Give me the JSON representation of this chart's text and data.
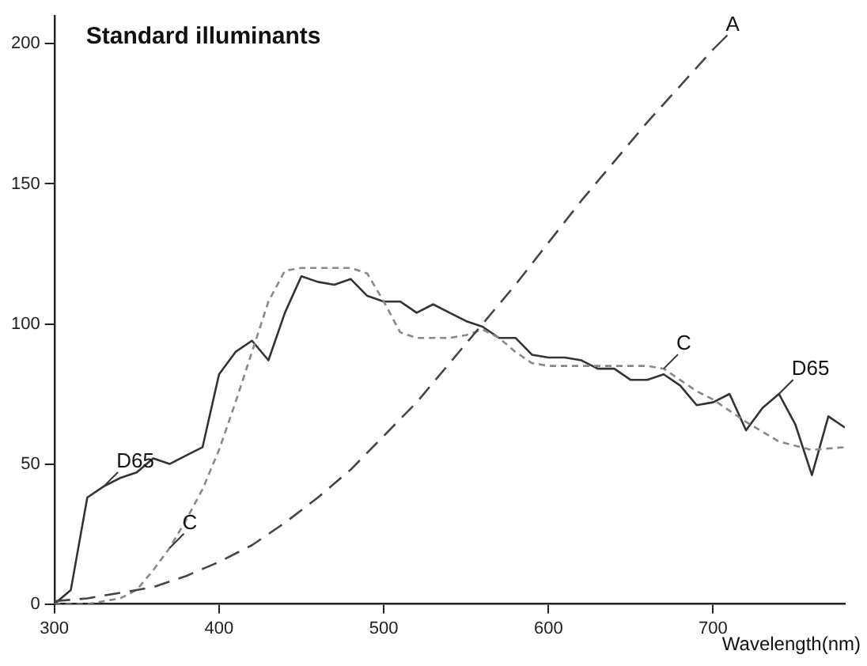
{
  "chart_data": {
    "type": "line",
    "title": "Standard illuminants",
    "xlabel": "Wavelength(nm)",
    "xlim": [
      300,
      780
    ],
    "xticks": [
      300,
      400,
      500,
      600,
      700
    ],
    "ylim": [
      0,
      210
    ],
    "yticks": [
      0,
      50,
      100,
      150,
      200
    ],
    "grid": false,
    "legend": false,
    "marker": "none",
    "series": [
      {
        "color": "#444444",
        "line_style": "dashed",
        "x": [
          300,
          320,
          340,
          360,
          380,
          400,
          420,
          440,
          460,
          480,
          500,
          520,
          540,
          560,
          580,
          600,
          620,
          640,
          660,
          680,
          700
        ],
        "values": [
          1,
          2,
          4,
          6,
          10,
          15,
          21,
          29,
          38,
          48,
          60,
          72,
          86,
          100,
          114,
          129,
          144,
          158,
          172,
          185,
          198
        ]
      },
      {
        "color": "#888888",
        "line_style": "dotted",
        "x": [
          300,
          320,
          340,
          350,
          360,
          370,
          380,
          390,
          400,
          410,
          420,
          430,
          440,
          450,
          460,
          470,
          480,
          490,
          500,
          510,
          520,
          530,
          540,
          550,
          560,
          570,
          580,
          590,
          600,
          620,
          640,
          660,
          670,
          680,
          690,
          700,
          720,
          740,
          760,
          780
        ],
        "values": [
          0,
          0,
          2,
          5,
          12,
          20,
          30,
          41,
          55,
          72,
          90,
          108,
          119,
          120,
          120,
          120,
          120,
          118,
          108,
          97,
          95,
          95,
          95,
          96,
          98,
          95,
          90,
          86,
          85,
          85,
          85,
          85,
          84,
          80,
          76,
          73,
          65,
          58,
          55,
          56
        ]
      },
      {
        "color": "#333333",
        "line_style": "solid",
        "x": [
          300,
          310,
          320,
          330,
          340,
          350,
          360,
          370,
          380,
          390,
          400,
          410,
          420,
          430,
          440,
          450,
          460,
          470,
          480,
          490,
          500,
          510,
          520,
          530,
          540,
          550,
          560,
          570,
          580,
          590,
          600,
          610,
          620,
          630,
          640,
          650,
          660,
          670,
          680,
          690,
          700,
          710,
          720,
          730,
          740,
          750,
          760,
          770,
          780
        ],
        "values": [
          0,
          5,
          38,
          42,
          45,
          47,
          52,
          50,
          53,
          56,
          82,
          90,
          94,
          87,
          104,
          117,
          115,
          114,
          116,
          110,
          108,
          108,
          104,
          107,
          104,
          101,
          99,
          95,
          95,
          89,
          88,
          88,
          87,
          84,
          84,
          80,
          80,
          82,
          78,
          71,
          72,
          75,
          62,
          70,
          75,
          64,
          46,
          67,
          63
        ]
      }
    ],
    "annotations": [
      {
        "text": "A",
        "x": 700,
        "y": 198
      },
      {
        "text": "C",
        "x": 370,
        "y": 20
      },
      {
        "text": "C",
        "x": 670,
        "y": 84
      },
      {
        "text": "D65",
        "x": 330,
        "y": 42
      },
      {
        "text": "D65",
        "x": 740,
        "y": 75
      }
    ]
  }
}
